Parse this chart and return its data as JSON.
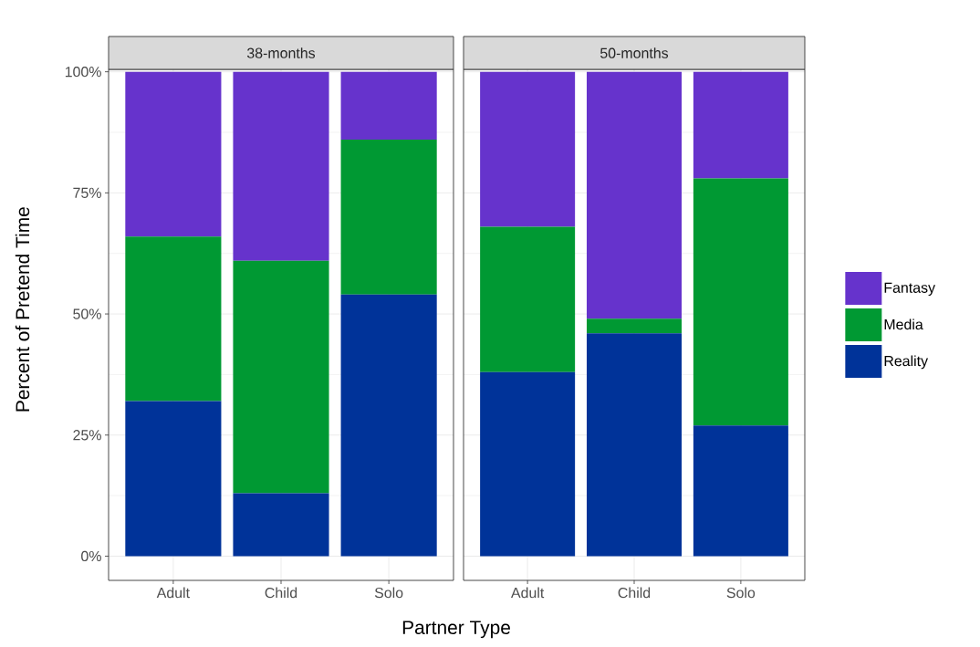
{
  "chart_data": [
    {
      "type": "bar",
      "title": "38-months",
      "xlabel": "Partner Type",
      "ylabel": "Percent of Pretend Time",
      "stacked": true,
      "grid": true,
      "categories": [
        "Adult",
        "Child",
        "Solo"
      ],
      "ylim": [
        -5,
        100.5
      ],
      "yticks": [
        {
          "value": 0,
          "label": "0%"
        },
        {
          "value": 25,
          "label": "25%"
        },
        {
          "value": 50,
          "label": "50%"
        },
        {
          "value": 75,
          "label": "75%"
        },
        {
          "value": 100,
          "label": "100%"
        }
      ],
      "series": [
        {
          "color": "#003399",
          "values": [
            32,
            13,
            54
          ]
        },
        {
          "color": "#009933",
          "values": [
            34,
            48,
            32
          ]
        },
        {
          "color": "#6633cc",
          "values": [
            34,
            39,
            14
          ]
        }
      ]
    },
    {
      "type": "bar",
      "title": "50-months",
      "stacked": true,
      "grid": true,
      "legend": "right",
      "tick_labels": "x",
      "categories": [
        "Adult",
        "Child",
        "Solo"
      ],
      "ylim": [
        -5,
        100.5
      ],
      "yticks": [
        {
          "value": 0,
          "label": null
        },
        {
          "value": 25,
          "label": null
        },
        {
          "value": 50,
          "label": null
        },
        {
          "value": 75,
          "label": null
        },
        {
          "value": 100,
          "label": null
        }
      ],
      "series": [
        {
          "name": "Reality",
          "color": "#003399",
          "values": [
            38,
            46,
            27
          ]
        },
        {
          "name": "Media",
          "color": "#009933",
          "values": [
            30,
            3,
            51
          ]
        },
        {
          "name": "Fantasy",
          "color": "#6633cc",
          "values": [
            32,
            51,
            22
          ]
        }
      ]
    }
  ]
}
